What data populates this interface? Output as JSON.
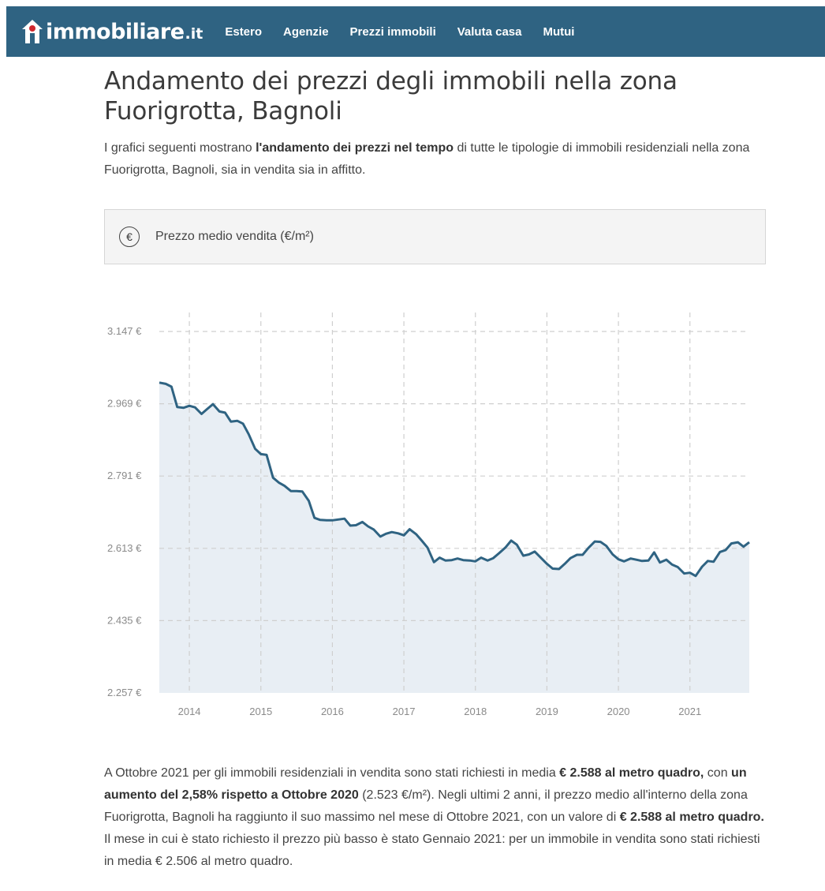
{
  "header": {
    "logo_text": "immobiliare",
    "logo_suffix": ".it",
    "nav": [
      "Estero",
      "Agenzie",
      "Prezzi immobili",
      "Valuta casa",
      "Mutui"
    ],
    "bar_color": "#2f6382"
  },
  "page": {
    "title": "Andamento dei prezzi degli immobili nella zona Fuorigrotta, Bagnoli",
    "intro": {
      "part1": "I grafici seguenti mostrano ",
      "bold": "l'andamento dei prezzi nel tempo",
      "part2": " di tutte le tipologie di immobili residenziali nella zona Fuorigrotta, Bagnoli, sia in vendita sia in affitto."
    }
  },
  "selector": {
    "icon": "euro-icon",
    "icon_glyph": "€",
    "label": "Prezzo medio vendita (€/m²)"
  },
  "chart_data": {
    "type": "area",
    "y_tick_labels": [
      "3.147 €",
      "2.969 €",
      "2.791 €",
      "2.613 €",
      "2.435 €",
      "2.257 €"
    ],
    "y_ticks": [
      3147,
      2969,
      2791,
      2613,
      2435,
      2257
    ],
    "ylim": [
      2257,
      3147
    ],
    "x_tick_labels": [
      "2014",
      "2015",
      "2016",
      "2017",
      "2018",
      "2019",
      "2020",
      "2021"
    ],
    "x_ticks": [
      2014.0,
      2015.0,
      2016.0,
      2017.0,
      2018.0,
      2019.0,
      2020.0,
      2021.0
    ],
    "xlim": [
      2013.58,
      2021.83
    ],
    "grid": true,
    "line_color": "#2f6382",
    "fill_color": "#e8eef4",
    "series": [
      {
        "x": [
          2013.58,
          2013.67,
          2013.75,
          2013.83,
          2013.92,
          2014.0,
          2014.08,
          2014.17,
          2014.25,
          2014.33,
          2014.42,
          2014.5,
          2014.58,
          2014.67,
          2014.75,
          2014.83,
          2014.92,
          2015.0,
          2015.08,
          2015.17,
          2015.25,
          2015.33,
          2015.42,
          2015.5,
          2015.58,
          2015.67,
          2015.75,
          2015.83,
          2015.92,
          2016.0,
          2016.08,
          2016.17,
          2016.25,
          2016.33,
          2016.42,
          2016.5,
          2016.58,
          2016.67,
          2016.75,
          2016.83,
          2016.92,
          2017.0,
          2017.08,
          2017.17,
          2017.25,
          2017.33,
          2017.42,
          2017.5,
          2017.58,
          2017.67,
          2017.75,
          2017.83,
          2017.92,
          2018.0,
          2018.08,
          2018.17,
          2018.25,
          2018.33,
          2018.42,
          2018.5,
          2018.58,
          2018.67,
          2018.75,
          2018.83,
          2018.92,
          2019.0,
          2019.08,
          2019.17,
          2019.25,
          2019.33,
          2019.42,
          2019.5,
          2019.58,
          2019.67,
          2019.75,
          2019.83,
          2019.92,
          2020.0,
          2020.08,
          2020.17,
          2020.25,
          2020.33,
          2020.42,
          2020.5,
          2020.58,
          2020.67,
          2020.75,
          2020.83,
          2020.92,
          2021.0,
          2021.08,
          2021.17,
          2021.25,
          2021.33,
          2021.42,
          2021.5,
          2021.58,
          2021.67,
          2021.75,
          2021.83
        ],
        "values": [
          3021,
          3018,
          3011,
          2961,
          2959,
          2964,
          2960,
          2944,
          2956,
          2968,
          2950,
          2947,
          2925,
          2927,
          2920,
          2894,
          2858,
          2845,
          2843,
          2787,
          2775,
          2767,
          2754,
          2754,
          2753,
          2730,
          2688,
          2683,
          2682,
          2682,
          2684,
          2686,
          2669,
          2670,
          2678,
          2667,
          2659,
          2642,
          2649,
          2653,
          2650,
          2645,
          2660,
          2648,
          2632,
          2615,
          2579,
          2590,
          2583,
          2584,
          2588,
          2584,
          2583,
          2581,
          2590,
          2583,
          2589,
          2601,
          2615,
          2632,
          2622,
          2595,
          2598,
          2605,
          2589,
          2575,
          2563,
          2562,
          2575,
          2589,
          2597,
          2597,
          2614,
          2630,
          2629,
          2619,
          2598,
          2586,
          2581,
          2588,
          2585,
          2582,
          2583,
          2603,
          2578,
          2585,
          2573,
          2567,
          2551,
          2553,
          2545,
          2568,
          2582,
          2580,
          2604,
          2609,
          2625,
          2628,
          2617,
          2628
        ]
      }
    ]
  },
  "summary": {
    "s1": "A Ottobre 2021 per gli immobili residenziali in vendita sono stati richiesti in media ",
    "b1": "€ 2.588 al metro quadro,",
    "s2": " con ",
    "b2": "un aumento del 2,58% rispetto a Ottobre 2020",
    "s3": " (2.523 €/m²). Negli ultimi 2 anni, il prezzo medio all'interno della zona Fuorigrotta, Bagnoli ha raggiunto il suo massimo nel mese di Ottobre 2021, con un valore di ",
    "b3": "€ 2.588 al metro quadro.",
    "s4": " Il mese in cui è stato richiesto il prezzo più basso è stato Gennaio 2021: per un immobile in vendita sono stati richiesti in media € 2.506 al metro quadro."
  }
}
